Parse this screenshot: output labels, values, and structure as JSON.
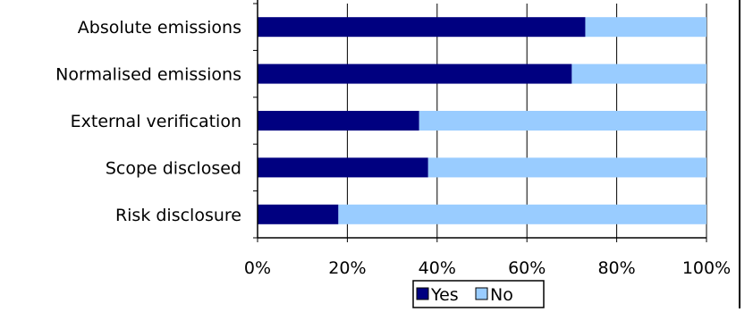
{
  "chart_data": {
    "type": "bar",
    "orientation": "horizontal",
    "stacked": true,
    "percent_stacked": true,
    "title": "",
    "xlabel": "",
    "ylabel": "",
    "categories": [
      "Absolute emissions",
      "Normalised emissions",
      "External verification",
      "Scope disclosed",
      "Risk disclosure"
    ],
    "series": [
      {
        "name": "Yes",
        "color": "#000080",
        "values": [
          73,
          70,
          36,
          38,
          18
        ]
      },
      {
        "name": "No",
        "color": "#99ccff",
        "values": [
          27,
          30,
          64,
          62,
          82
        ]
      }
    ],
    "xlim": [
      0,
      100
    ],
    "xticks": [
      0,
      20,
      40,
      60,
      80,
      100
    ],
    "xtick_labels": [
      "0%",
      "20%",
      "40%",
      "60%",
      "80%",
      "100%"
    ],
    "grid": "vertical",
    "legend_position": "bottom"
  }
}
